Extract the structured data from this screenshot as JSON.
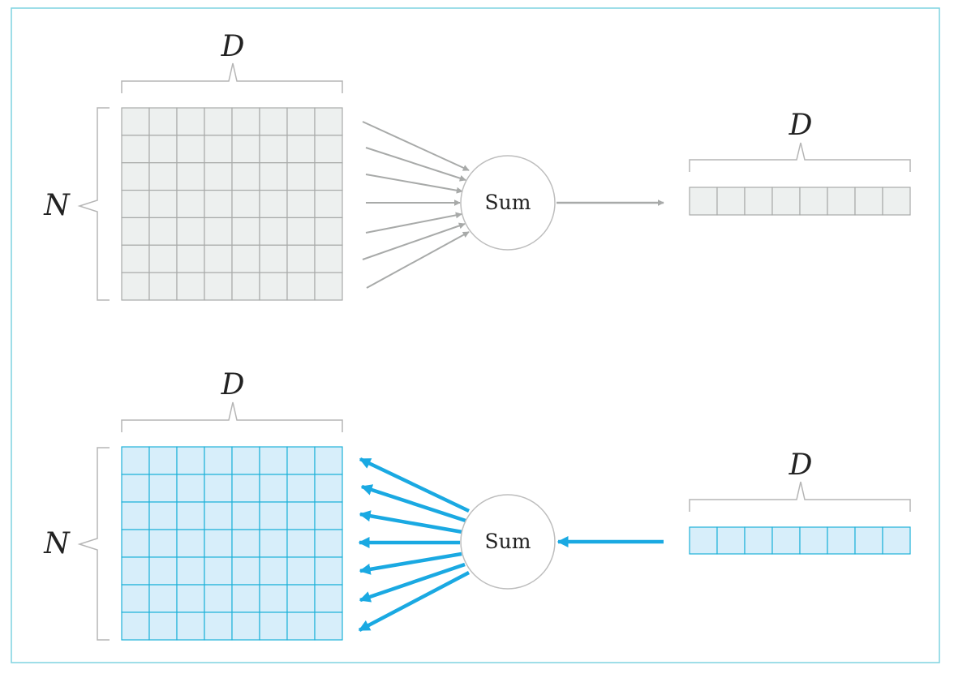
{
  "forward": {
    "matrix_width_label": "D",
    "matrix_height_label": "N",
    "operation_label": "Sum",
    "output_width_label": "D",
    "matrix_rows": 7,
    "matrix_cols": 8,
    "vector_cols": 8,
    "colors": {
      "fill": "#edf0ef",
      "stroke": "#a8aaa9",
      "arrow": "#a8aaa9"
    }
  },
  "backward": {
    "matrix_width_label": "D",
    "matrix_height_label": "N",
    "operation_label": "Sum",
    "input_width_label": "D",
    "matrix_rows": 7,
    "matrix_cols": 8,
    "vector_cols": 8,
    "colors": {
      "fill": "#d7eefa",
      "stroke": "#1fb2d9",
      "arrow": "#1aa9e2"
    }
  },
  "colors": {
    "frame": "#7fd3e0",
    "bracket": "#b5b5b5",
    "circle": "#bdbdbd"
  }
}
